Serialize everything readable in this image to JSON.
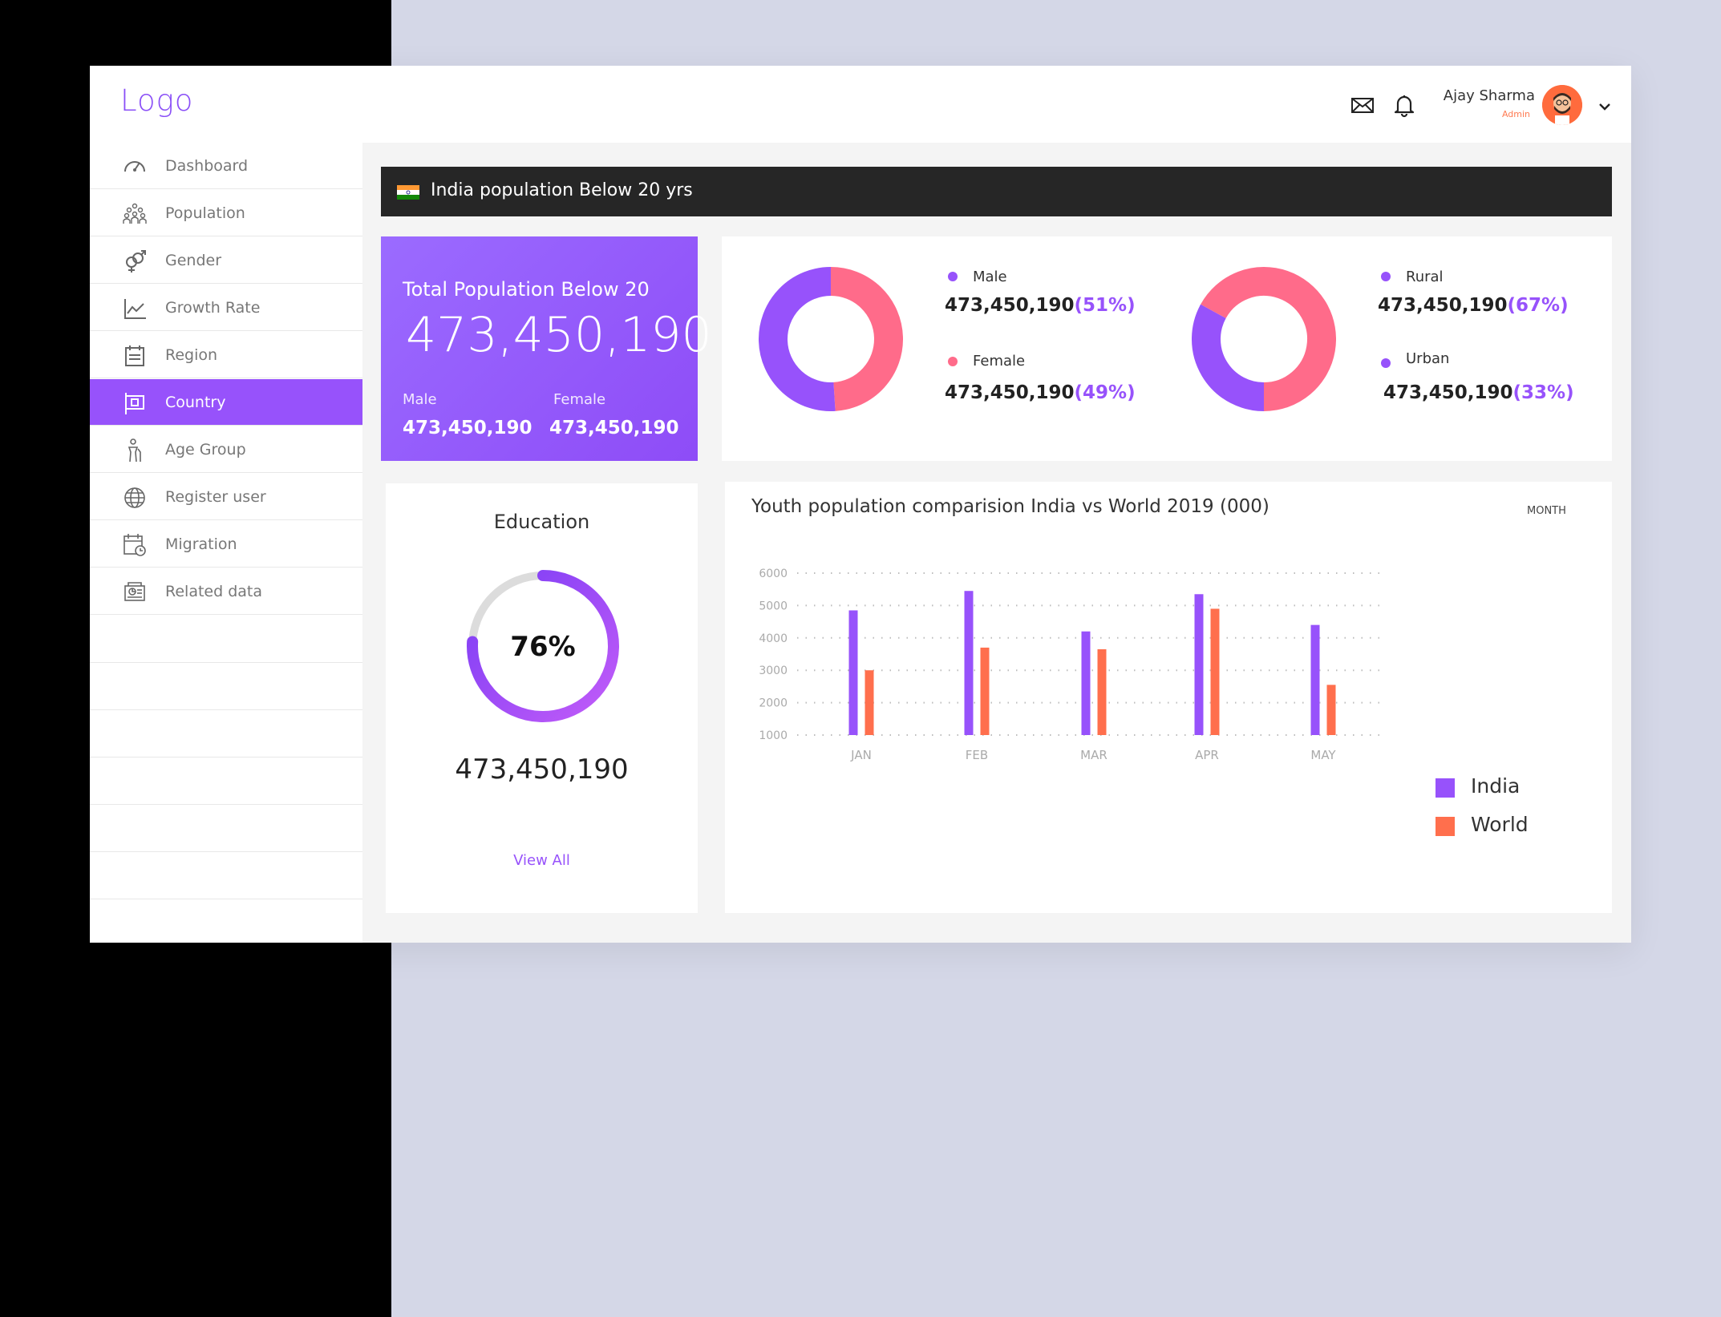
{
  "header": {
    "logo": "Logo",
    "user_name": "Ajay Sharma",
    "user_role": "Admin",
    "icons": [
      "mail-icon",
      "bell-icon",
      "chevron-down-icon"
    ]
  },
  "sidebar": {
    "items": [
      {
        "label": "Dashboard",
        "icon": "speedometer-icon",
        "active": false
      },
      {
        "label": "Population",
        "icon": "crowd-icon",
        "active": false
      },
      {
        "label": "Gender",
        "icon": "gender-icon",
        "active": false
      },
      {
        "label": "Growth Rate",
        "icon": "line-chart-icon",
        "active": false
      },
      {
        "label": "Region",
        "icon": "calendar-list-icon",
        "active": false
      },
      {
        "label": "Country",
        "icon": "flag-icon",
        "active": true
      },
      {
        "label": "Age Group",
        "icon": "person-cane-icon",
        "active": false
      },
      {
        "label": "Register user",
        "icon": "globe-icon",
        "active": false
      },
      {
        "label": "Migration",
        "icon": "calendar-clock-icon",
        "active": false
      },
      {
        "label": "Related data",
        "icon": "data-icon",
        "active": false
      }
    ]
  },
  "banner": {
    "title": "India population Below 20 yrs"
  },
  "total_card": {
    "heading": "Total Population Below 20",
    "value": "473,450,190",
    "male_label": "Male",
    "male_value": "473,450,190",
    "female_label": "Female",
    "female_value": "473,450,190"
  },
  "gender_donut": {
    "male_label": "Male",
    "male_value": "473,450,190",
    "male_pct": "(51%)",
    "female_label": "Female",
    "female_value": "473,450,190",
    "female_pct": "(49%)",
    "male_fraction": 0.51
  },
  "area_donut": {
    "rural_label": "Rural",
    "rural_value": "473,450,190",
    "rural_pct": "(67%)",
    "urban_label": "Urban",
    "urban_value": "473,450,190",
    "urban_pct": "(33%)",
    "rural_fraction": 0.67
  },
  "education": {
    "heading": "Education",
    "percent": "76%",
    "fraction": 0.76,
    "value": "473,450,190",
    "link": "View All"
  },
  "colors": {
    "purple": "#9752fb",
    "pink": "#ff6b8a",
    "orange": "#ff6f4d",
    "dark": "#262626"
  },
  "chart_data": {
    "type": "bar",
    "title": "Youth population comparision India vs World 2019 (000)",
    "period_label": "MONTH",
    "categories": [
      "JAN",
      "FEB",
      "MAR",
      "APR",
      "MAY"
    ],
    "y_ticks": [
      6000,
      5000,
      4000,
      3000,
      2000,
      1000
    ],
    "ylim": [
      1000,
      6000
    ],
    "grid": true,
    "legend_position": "right",
    "series": [
      {
        "name": "India",
        "color": "#9752fb",
        "values": [
          4850,
          5450,
          4200,
          5350,
          4400
        ]
      },
      {
        "name": "World",
        "color": "#ff6f4d",
        "values": [
          3000,
          3700,
          3650,
          4900,
          2550
        ]
      }
    ]
  }
}
